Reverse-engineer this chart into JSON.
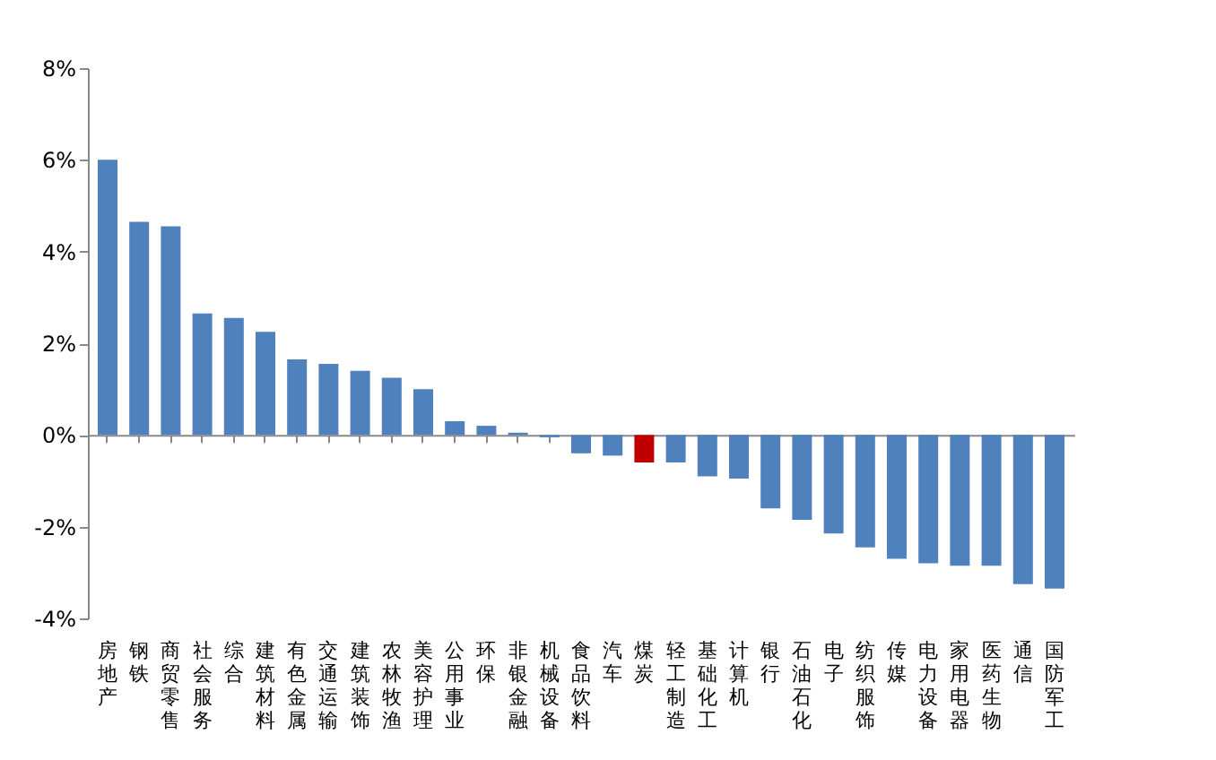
{
  "chart_data": {
    "type": "bar",
    "categories": [
      "房地产",
      "钢铁",
      "商贸零售",
      "社会服务",
      "综合",
      "建筑材料",
      "有色金属",
      "交通运输",
      "建筑装饰",
      "农林牧渔",
      "美容护理",
      "公用事业",
      "环保",
      "非银金融",
      "机械设备",
      "食品饮料",
      "汽车",
      "煤炭",
      "轻工制造",
      "基础化工",
      "计算机",
      "银行",
      "石油石化",
      "电子",
      "纺织服饰",
      "传媒",
      "电力设备",
      "家用电器",
      "医药生物",
      "通信",
      "国防军工"
    ],
    "values": [
      6.0,
      4.65,
      4.55,
      2.65,
      2.55,
      2.25,
      1.65,
      1.55,
      1.4,
      1.25,
      1.0,
      0.3,
      0.2,
      0.05,
      -0.05,
      -0.4,
      -0.45,
      -0.6,
      -0.6,
      -0.9,
      -0.95,
      -1.6,
      -1.85,
      -2.15,
      -2.45,
      -2.7,
      -2.8,
      -2.85,
      -2.85,
      -3.25,
      -3.35
    ],
    "colors": [
      "#4f81bd",
      "#4f81bd",
      "#4f81bd",
      "#4f81bd",
      "#4f81bd",
      "#4f81bd",
      "#4f81bd",
      "#4f81bd",
      "#4f81bd",
      "#4f81bd",
      "#4f81bd",
      "#4f81bd",
      "#4f81bd",
      "#4f81bd",
      "#4f81bd",
      "#4f81bd",
      "#4f81bd",
      "#c00000",
      "#4f81bd",
      "#4f81bd",
      "#4f81bd",
      "#4f81bd",
      "#4f81bd",
      "#4f81bd",
      "#4f81bd",
      "#4f81bd",
      "#4f81bd",
      "#4f81bd",
      "#4f81bd",
      "#4f81bd",
      "#4f81bd"
    ],
    "ylim": [
      -4,
      8
    ],
    "yticks": [
      {
        "value": -4,
        "label": "-4%"
      },
      {
        "value": -2,
        "label": "-2%"
      },
      {
        "value": 0,
        "label": "0%"
      },
      {
        "value": 2,
        "label": "2%"
      },
      {
        "value": 4,
        "label": "4%"
      },
      {
        "value": 6,
        "label": "6%"
      },
      {
        "value": 8,
        "label": "8%"
      }
    ],
    "legend": false
  }
}
